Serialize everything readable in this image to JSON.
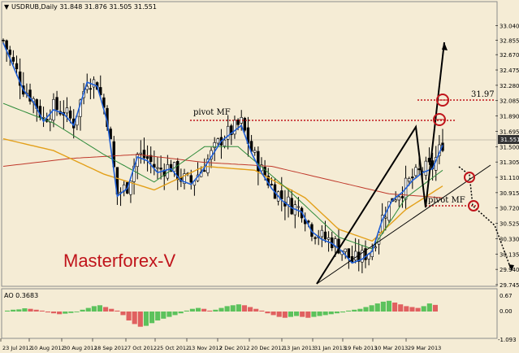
{
  "header": {
    "symbol_info": "USDRUB,Daily  31.848 31.876 31.505 31.551",
    "arrow_glyph": "▼"
  },
  "watermark": "Masterforex-V",
  "annotations": {
    "pivot_top": "pivot MF",
    "pivot_right": "pivot MF",
    "level_label": "31.97"
  },
  "ao_panel": {
    "label": "AO 0.3683",
    "ticks": [
      "0.67",
      "0.00",
      "-1.093"
    ]
  },
  "price_marker": "31.551",
  "colors": {
    "background": "#f5ecd5",
    "candle": "#000000",
    "ma_blue": "#1f5fd6",
    "ma_orange": "#e3a01a",
    "ma_green": "#2e8b3a",
    "ma_red": "#c0392b",
    "annotation_red": "#c0141b",
    "ao_green": "#5cc25c",
    "ao_red": "#e06060",
    "watermark": "#c0141b"
  },
  "chart_data": {
    "type": "candlestick",
    "title": "USDRUB,Daily",
    "x_labels": [
      "23 Jul 2012",
      "10 Aug 2012",
      "30 Aug 2012",
      "18 Sep 2012",
      "7 Oct 2012",
      "25 Oct 2012",
      "13 Nov 2012",
      "2 Dec 2012",
      "20 Dec 2012",
      "13 Jan 2013",
      "31 Jan 2013",
      "19 Feb 2013",
      "10 Mar 2013",
      "29 Mar 2013"
    ],
    "y_ticks": [
      33.04,
      32.855,
      32.67,
      32.475,
      32.28,
      32.085,
      31.89,
      31.695,
      31.5,
      31.305,
      31.11,
      30.915,
      30.72,
      30.525,
      30.33,
      30.135,
      29.94,
      29.745
    ],
    "ylim": [
      29.745,
      33.22
    ],
    "last_price": 31.551,
    "close_path": [
      [
        0,
        32.85
      ],
      [
        3,
        32.55
      ],
      [
        6,
        32.25
      ],
      [
        9,
        32.1
      ],
      [
        12,
        31.85
      ],
      [
        15,
        32.0
      ],
      [
        18,
        31.95
      ],
      [
        21,
        31.8
      ],
      [
        25,
        32.35
      ],
      [
        28,
        32.3
      ],
      [
        31,
        31.85
      ],
      [
        34,
        30.9
      ],
      [
        37,
        31.0
      ],
      [
        40,
        31.4
      ],
      [
        43,
        31.35
      ],
      [
        46,
        31.2
      ],
      [
        50,
        31.25
      ],
      [
        53,
        31.1
      ],
      [
        56,
        31.05
      ],
      [
        59,
        31.2
      ],
      [
        62,
        31.4
      ],
      [
        65,
        31.6
      ],
      [
        68,
        31.7
      ],
      [
        71,
        31.8
      ],
      [
        74,
        31.45
      ],
      [
        77,
        31.2
      ],
      [
        80,
        31.0
      ],
      [
        83,
        30.85
      ],
      [
        86,
        30.75
      ],
      [
        89,
        30.7
      ],
      [
        92,
        30.45
      ],
      [
        95,
        30.35
      ],
      [
        98,
        30.3
      ],
      [
        101,
        30.2
      ],
      [
        104,
        30.05
      ],
      [
        107,
        30.1
      ],
      [
        110,
        30.2
      ],
      [
        113,
        30.6
      ],
      [
        116,
        30.85
      ],
      [
        119,
        30.95
      ],
      [
        122,
        31.1
      ],
      [
        125,
        31.2
      ],
      [
        128,
        31.25
      ],
      [
        131,
        31.55
      ]
    ],
    "ma_slow_red": [
      [
        0,
        31.25
      ],
      [
        20,
        31.35
      ],
      [
        40,
        31.4
      ],
      [
        60,
        31.3
      ],
      [
        80,
        31.25
      ],
      [
        100,
        31.05
      ],
      [
        115,
        30.9
      ],
      [
        131,
        30.85
      ]
    ],
    "ma_orange": [
      [
        0,
        31.6
      ],
      [
        15,
        31.45
      ],
      [
        30,
        31.15
      ],
      [
        45,
        30.95
      ],
      [
        60,
        31.25
      ],
      [
        75,
        31.2
      ],
      [
        90,
        30.85
      ],
      [
        100,
        30.45
      ],
      [
        110,
        30.3
      ],
      [
        120,
        30.7
      ],
      [
        131,
        31.0
      ]
    ],
    "ma_green": [
      [
        0,
        32.05
      ],
      [
        15,
        31.8
      ],
      [
        30,
        31.4
      ],
      [
        45,
        31.05
      ],
      [
        60,
        31.5
      ],
      [
        70,
        31.5
      ],
      [
        85,
        30.95
      ],
      [
        100,
        30.35
      ],
      [
        110,
        30.2
      ],
      [
        120,
        30.85
      ],
      [
        131,
        31.2
      ]
    ],
    "ao_values": [
      0.05,
      0.1,
      0.12,
      0.18,
      0.15,
      0.1,
      0.05,
      -0.05,
      -0.1,
      -0.15,
      -0.12,
      -0.08,
      -0.04,
      0.1,
      0.2,
      0.3,
      0.35,
      0.25,
      0.15,
      0.05,
      -0.2,
      -0.5,
      -0.7,
      -0.85,
      -0.8,
      -0.65,
      -0.5,
      -0.4,
      -0.3,
      -0.2,
      -0.1,
      0.05,
      0.15,
      0.2,
      0.15,
      0.05,
      0.1,
      0.2,
      0.3,
      0.35,
      0.4,
      0.35,
      0.25,
      0.15,
      0.05,
      -0.1,
      -0.2,
      -0.3,
      -0.35,
      -0.3,
      -0.25,
      -0.3,
      -0.35,
      -0.3,
      -0.25,
      -0.2,
      -0.15,
      -0.1,
      -0.05,
      0.05,
      0.1,
      0.15,
      0.25,
      0.35,
      0.45,
      0.55,
      0.6,
      0.5,
      0.4,
      0.3,
      0.25,
      0.2,
      0.3,
      0.45,
      0.37
    ]
  }
}
